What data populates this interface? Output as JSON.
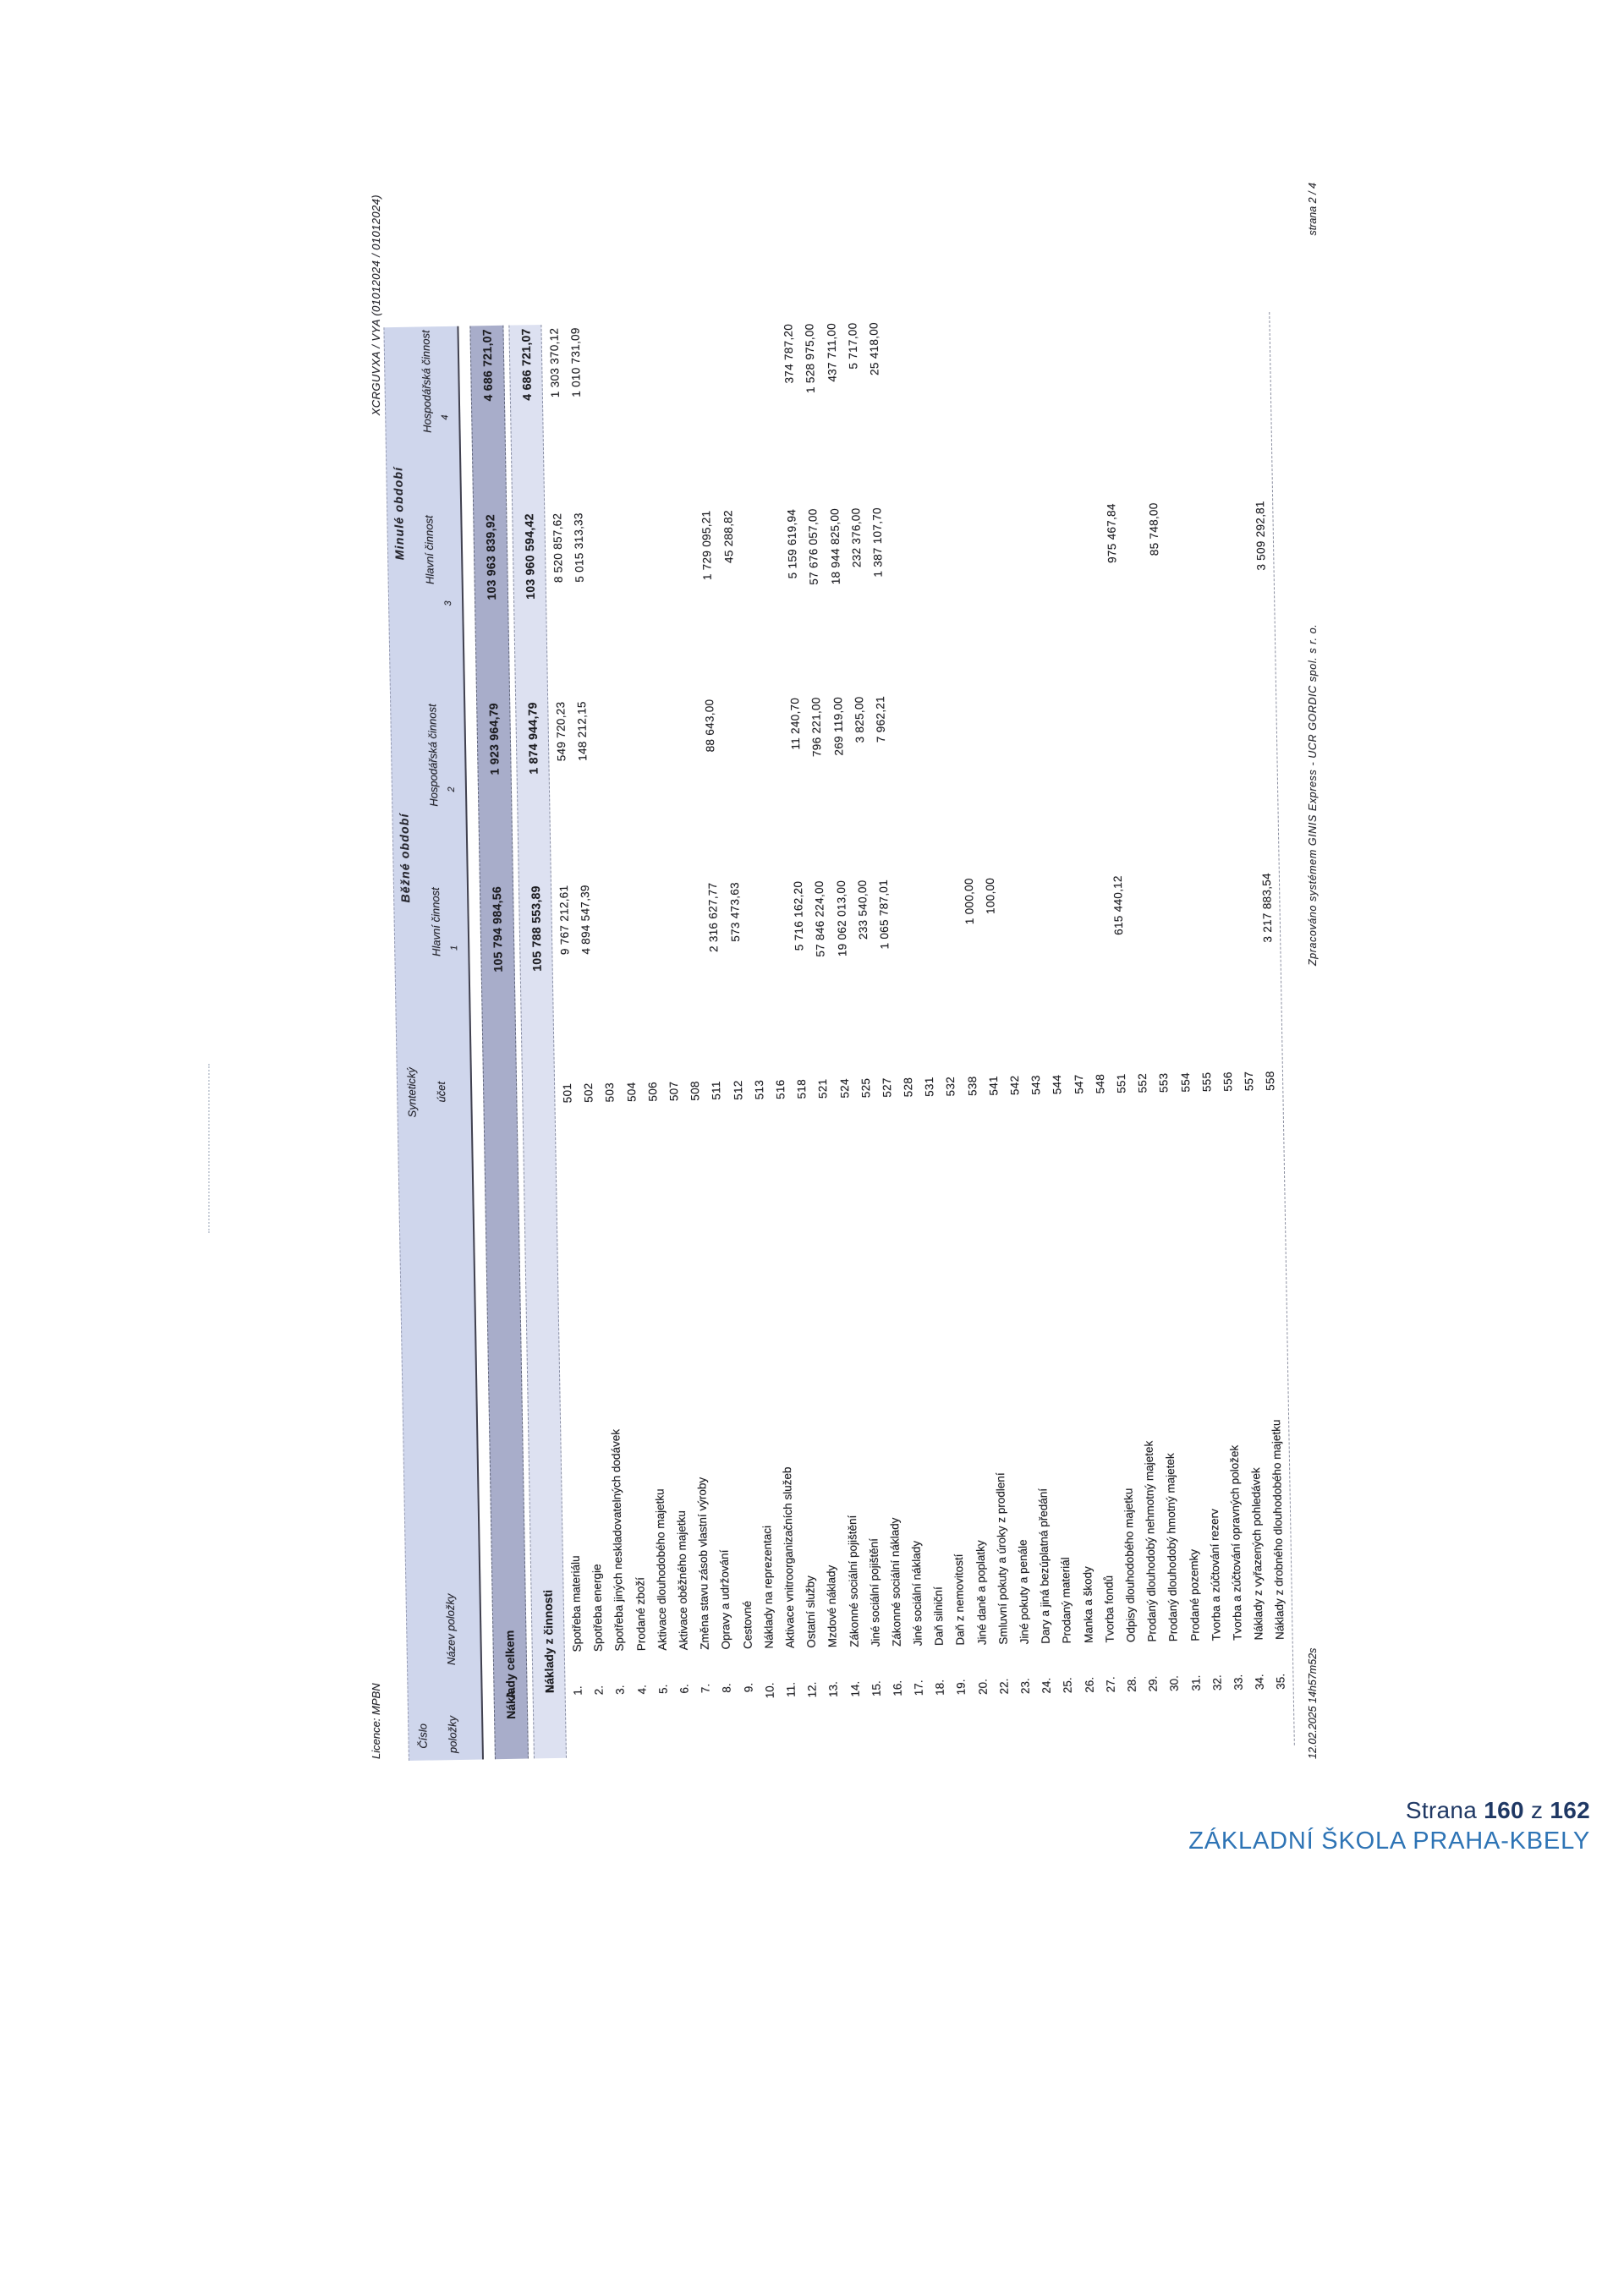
{
  "scan": {
    "licence": "Licence: MPBN",
    "report_code": "XCRGUVXA / VYA  (01012024 / 01012024)",
    "print_timestamp": "12.02.2025 14h57m52s",
    "processed_note": "Zpracováno systémem GINIS Express - UCR GORDIC spol. s r. o.",
    "sheet_page": "strana 2 / 4"
  },
  "table": {
    "header": {
      "cislo_line1": "Číslo",
      "cislo_line2": "položky",
      "nazev": "Název položky",
      "synt_line1": "Syntetický",
      "synt_line2": "účet",
      "bezne": "Běžné období",
      "minule": "Minulé období",
      "hlavni": "Hlavní činnost",
      "hospodarska": "Hospodářská činnost",
      "col_nums": [
        "1",
        "2",
        "3",
        "4"
      ]
    },
    "summary_rows": [
      {
        "num": "A.",
        "name": "Náklady celkem",
        "account": "",
        "c1": "105 794 984,56",
        "c2": "1 923 964,79",
        "c3": "103 963 839,92",
        "c4": "4 686 721,07"
      },
      {
        "num": "I.",
        "name": "Náklady z činnosti",
        "account": "",
        "c1": "105 788 553,89",
        "c2": "1 874 944,79",
        "c3": "103 960 594,42",
        "c4": "4 686 721,07"
      }
    ],
    "item_rows": [
      {
        "num": "1.",
        "name": "Spotřeba materiálu",
        "account": "501",
        "c1": "9 767 212,61",
        "c2": "549 720,23",
        "c3": "8 520 857,62",
        "c4": "1 303 370,12"
      },
      {
        "num": "2.",
        "name": "Spotřeba energie",
        "account": "502",
        "c1": "4 894 547,39",
        "c2": "148 212,15",
        "c3": "5 015 313,33",
        "c4": "1 010 731,09"
      },
      {
        "num": "3.",
        "name": "Spotřeba jiných neskladovatelných dodávek",
        "account": "503",
        "c1": "",
        "c2": "",
        "c3": "",
        "c4": ""
      },
      {
        "num": "4.",
        "name": "Prodané zboží",
        "account": "504",
        "c1": "",
        "c2": "",
        "c3": "",
        "c4": ""
      },
      {
        "num": "5.",
        "name": "Aktivace dlouhodobého majetku",
        "account": "506",
        "c1": "",
        "c2": "",
        "c3": "",
        "c4": ""
      },
      {
        "num": "6.",
        "name": "Aktivace oběžného majetku",
        "account": "507",
        "c1": "",
        "c2": "",
        "c3": "",
        "c4": ""
      },
      {
        "num": "7.",
        "name": "Změna stavu zásob vlastní výroby",
        "account": "508",
        "c1": "",
        "c2": "",
        "c3": "",
        "c4": ""
      },
      {
        "num": "8.",
        "name": "Opravy a udržování",
        "account": "511",
        "c1": "2 316 627,77",
        "c2": "88 643,00",
        "c3": "1 729 095,21",
        "c4": ""
      },
      {
        "num": "9.",
        "name": "Cestovné",
        "account": "512",
        "c1": "573 473,63",
        "c2": "",
        "c3": "45 288,82",
        "c4": ""
      },
      {
        "num": "10.",
        "name": "Náklady na reprezentaci",
        "account": "513",
        "c1": "",
        "c2": "",
        "c3": "",
        "c4": ""
      },
      {
        "num": "11.",
        "name": "Aktivace vnitroorganizačních služeb",
        "account": "516",
        "c1": "",
        "c2": "",
        "c3": "",
        "c4": ""
      },
      {
        "num": "12.",
        "name": "Ostatní služby",
        "account": "518",
        "c1": "5 716 162,20",
        "c2": "11 240,70",
        "c3": "5 159 619,94",
        "c4": "374 787,20"
      },
      {
        "num": "13.",
        "name": "Mzdové náklady",
        "account": "521",
        "c1": "57 846 224,00",
        "c2": "796 221,00",
        "c3": "57 676 057,00",
        "c4": "1 528 975,00"
      },
      {
        "num": "14.",
        "name": "Zákonné sociální pojištění",
        "account": "524",
        "c1": "19 062 013,00",
        "c2": "269 119,00",
        "c3": "18 944 825,00",
        "c4": "437 711,00"
      },
      {
        "num": "15.",
        "name": "Jiné sociální pojištění",
        "account": "525",
        "c1": "233 540,00",
        "c2": "3 825,00",
        "c3": "232 376,00",
        "c4": "5 717,00"
      },
      {
        "num": "16.",
        "name": "Zákonné sociální náklady",
        "account": "527",
        "c1": "1 065 787,01",
        "c2": "7 962,21",
        "c3": "1 387 107,70",
        "c4": "25 418,00"
      },
      {
        "num": "17.",
        "name": "Jiné sociální náklady",
        "account": "528",
        "c1": "",
        "c2": "",
        "c3": "",
        "c4": ""
      },
      {
        "num": "18.",
        "name": "Daň silniční",
        "account": "531",
        "c1": "",
        "c2": "",
        "c3": "",
        "c4": ""
      },
      {
        "num": "19.",
        "name": "Daň z nemovitostí",
        "account": "532",
        "c1": "",
        "c2": "",
        "c3": "",
        "c4": ""
      },
      {
        "num": "20.",
        "name": "Jiné daně a poplatky",
        "account": "538",
        "c1": "1 000,00",
        "c2": "",
        "c3": "",
        "c4": ""
      },
      {
        "num": "22.",
        "name": "Smluvní pokuty a úroky z prodlení",
        "account": "541",
        "c1": "100,00",
        "c2": "",
        "c3": "",
        "c4": ""
      },
      {
        "num": "23.",
        "name": "Jiné pokuty a penále",
        "account": "542",
        "c1": "",
        "c2": "",
        "c3": "",
        "c4": ""
      },
      {
        "num": "24.",
        "name": "Dary a jiná bezúplatná předání",
        "account": "543",
        "c1": "",
        "c2": "",
        "c3": "",
        "c4": ""
      },
      {
        "num": "25.",
        "name": "Prodaný materiál",
        "account": "544",
        "c1": "",
        "c2": "",
        "c3": "",
        "c4": ""
      },
      {
        "num": "26.",
        "name": "Manka a škody",
        "account": "547",
        "c1": "",
        "c2": "",
        "c3": "",
        "c4": ""
      },
      {
        "num": "27.",
        "name": "Tvorba fondů",
        "account": "548",
        "c1": "",
        "c2": "",
        "c3": "",
        "c4": ""
      },
      {
        "num": "28.",
        "name": "Odpisy dlouhodobého majetku",
        "account": "551",
        "c1": "615 440,12",
        "c2": "",
        "c3": "975 467,84",
        "c4": ""
      },
      {
        "num": "29.",
        "name": "Prodaný dlouhodobý nehmotný majetek",
        "account": "552",
        "c1": "",
        "c2": "",
        "c3": "",
        "c4": ""
      },
      {
        "num": "30.",
        "name": "Prodaný dlouhodobý hmotný majetek",
        "account": "553",
        "c1": "",
        "c2": "",
        "c3": "85 748,00",
        "c4": ""
      },
      {
        "num": "31.",
        "name": "Prodané pozemky",
        "account": "554",
        "c1": "",
        "c2": "",
        "c3": "",
        "c4": ""
      },
      {
        "num": "32.",
        "name": "Tvorba a zúčtování rezerv",
        "account": "555",
        "c1": "",
        "c2": "",
        "c3": "",
        "c4": ""
      },
      {
        "num": "33.",
        "name": "Tvorba a zúčtování opravných položek",
        "account": "556",
        "c1": "",
        "c2": "",
        "c3": "",
        "c4": ""
      },
      {
        "num": "34.",
        "name": "Náklady z vyřazených pohledávek",
        "account": "557",
        "c1": "",
        "c2": "",
        "c3": "",
        "c4": ""
      },
      {
        "num": "35.",
        "name": "Náklady z drobného dlouhodobého majetku",
        "account": "558",
        "c1": "3 217 883,54",
        "c2": "",
        "c3": "3 509 292,81",
        "c4": ""
      }
    ]
  },
  "pdf_footer": {
    "strana_label": "Strana",
    "page_number": "160",
    "of_label": "z",
    "total_pages": "162",
    "organization": "ZÁKLADNÍ ŠKOLA PRAHA-KBELY"
  }
}
